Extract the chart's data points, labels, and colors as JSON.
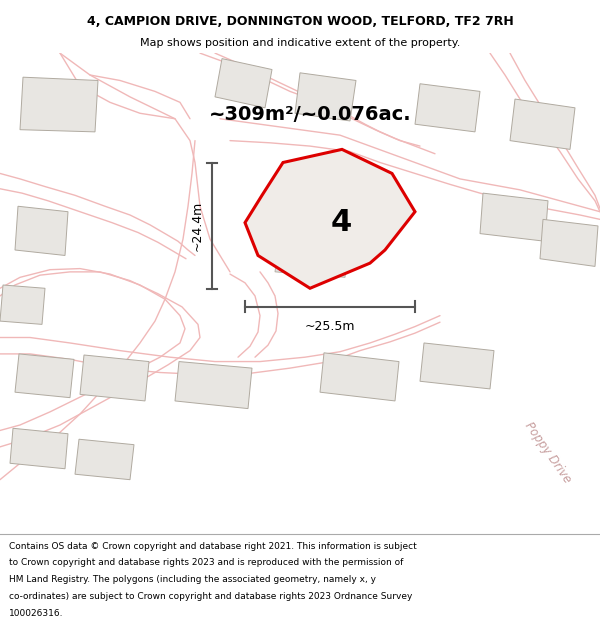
{
  "title_line1": "4, CAMPION DRIVE, DONNINGTON WOOD, TELFORD, TF2 7RH",
  "title_line2": "Map shows position and indicative extent of the property.",
  "area_label": "~309m²/~0.076ac.",
  "property_number": "4",
  "dim_vertical": "~24.4m",
  "dim_horizontal": "~25.5m",
  "street_label": "Poppy Drive",
  "footer_text": "Contains OS data © Crown copyright and database right 2021. This information is subject to Crown copyright and database rights 2023 and is reproduced with the permission of HM Land Registry. The polygons (including the associated geometry, namely x, y co-ordinates) are subject to Crown copyright and database rights 2023 Ordnance Survey 100026316.",
  "map_bg": "#f7f5f2",
  "building_fill": "#e8e6e2",
  "building_edge": "#b0aaa0",
  "road_color": "#f0b8b8",
  "property_fill": "#f0ece8",
  "property_outline_color": "#dd0000",
  "street_label_color": "#c8a0a0",
  "footer_bg": "#ffffff",
  "dim_line_color": "#555555",
  "title_font_size": 9,
  "subtitle_font_size": 8,
  "area_font_size": 14
}
